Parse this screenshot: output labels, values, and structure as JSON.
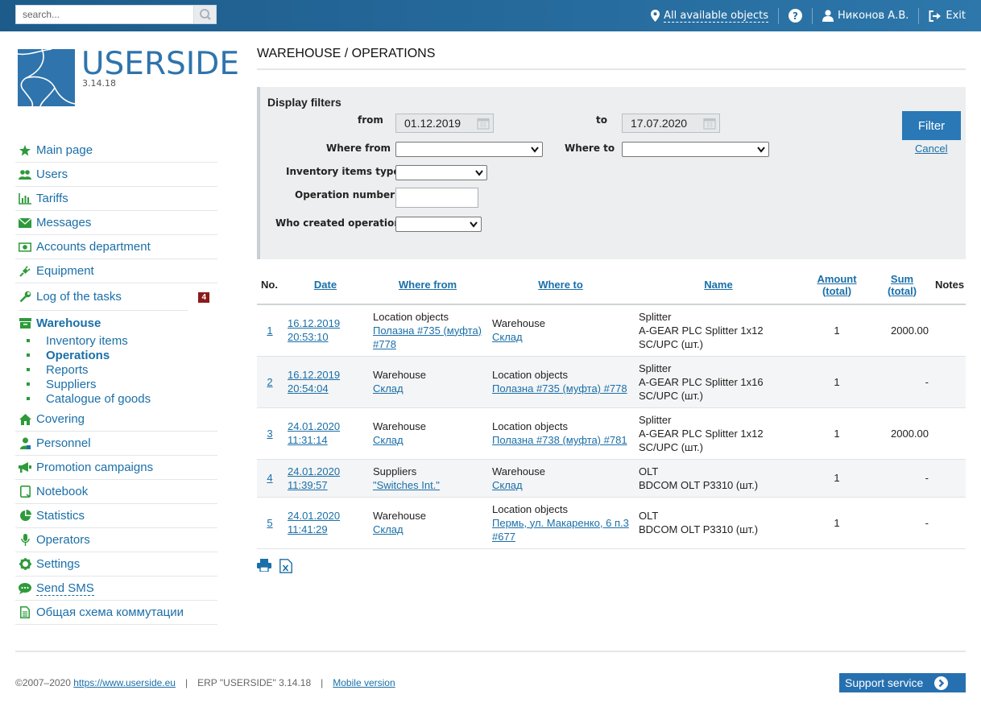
{
  "topbar": {
    "search_placeholder": "search...",
    "objects_link": "All available objects",
    "user_name": "Никонов А.В.",
    "exit_label": "Exit"
  },
  "logo": {
    "name": "USERSIDE",
    "version": "3.14.18"
  },
  "sidebar": {
    "items": [
      {
        "label": "Main page",
        "icon": "star-icon"
      },
      {
        "label": "Users",
        "icon": "users-icon"
      },
      {
        "label": "Tariffs",
        "icon": "bar-chart-icon"
      },
      {
        "label": "Messages",
        "icon": "envelope-icon"
      },
      {
        "label": "Accounts department",
        "icon": "money-icon"
      },
      {
        "label": "Equipment",
        "icon": "plug-icon"
      },
      {
        "label": "Log of the tasks",
        "icon": "wrench-icon",
        "badge": "4"
      },
      {
        "label": "Warehouse",
        "icon": "archive-icon"
      }
    ],
    "warehouse_sub": [
      "Inventory items",
      "Operations",
      "Reports",
      "Suppliers",
      "Catalogue of goods"
    ],
    "items2": [
      {
        "label": "Covering",
        "icon": "home-icon"
      },
      {
        "label": "Personnel",
        "icon": "person-icon"
      },
      {
        "label": "Promotion campaigns",
        "icon": "megaphone-icon"
      },
      {
        "label": "Notebook",
        "icon": "notebook-icon"
      },
      {
        "label": "Statistics",
        "icon": "pie-chart-icon"
      },
      {
        "label": "Operators",
        "icon": "microphone-icon"
      },
      {
        "label": "Settings",
        "icon": "gear-icon"
      },
      {
        "label": "Send SMS",
        "icon": "chat-icon"
      },
      {
        "label": "Общая схема коммутации",
        "icon": "document-icon"
      }
    ]
  },
  "page": {
    "title": "WAREHOUSE / OPERATIONS"
  },
  "filters": {
    "title": "Display filters",
    "from_label": "from",
    "from_value": "01.12.2019",
    "to_label": "to",
    "to_value": "17.07.2020",
    "where_from_label": "Where from",
    "where_to_label": "Where to",
    "inventory_type_label": "Inventory items type",
    "operation_number_label": "Operation number",
    "who_created_label": "Who created operation",
    "filter_button": "Filter",
    "cancel_link": "Cancel"
  },
  "table": {
    "headers": {
      "no": "No.",
      "date": "Date",
      "where_from": "Where from",
      "where_to": "Where to",
      "name": "Name",
      "amount_1": "Amount",
      "amount_2": "(total)",
      "sum_1": "Sum",
      "sum_2": "(total)",
      "notes": "Notes"
    },
    "rows": [
      {
        "no": "1",
        "date": "16.12.2019",
        "time": "20:53:10",
        "from_type": "Location objects",
        "from_link": "Полазна #735 (муфта) #778",
        "to_type": "Warehouse",
        "to_link": "Склад",
        "name_type": "Splitter",
        "name_item": "A-GEAR PLC Splitter 1x12 SC/UPC (шт.)",
        "amount": "1",
        "sum": "2000.00"
      },
      {
        "no": "2",
        "date": "16.12.2019",
        "time": "20:54:04",
        "from_type": "Warehouse",
        "from_link": "Склад",
        "to_type": "Location objects",
        "to_link": "Полазна #735 (муфта) #778",
        "name_type": "Splitter",
        "name_item": "A-GEAR PLC Splitter 1x16 SC/UPC (шт.)",
        "amount": "1",
        "sum": "-"
      },
      {
        "no": "3",
        "date": "24.01.2020",
        "time": "11:31:14",
        "from_type": "Warehouse",
        "from_link": "Склад",
        "to_type": "Location objects",
        "to_link": "Полазна #738 (муфта) #781",
        "name_type": "Splitter",
        "name_item": "A-GEAR PLC Splitter 1x12 SC/UPC (шт.)",
        "amount": "1",
        "sum": "2000.00"
      },
      {
        "no": "4",
        "date": "24.01.2020",
        "time": "11:39:57",
        "from_type": "Suppliers",
        "from_link": "\"Switches Int.\"",
        "to_type": "Warehouse",
        "to_link": "Склад",
        "name_type": "OLT",
        "name_item": "BDCOM OLT P3310 (шт.)",
        "amount": "1",
        "sum": "-"
      },
      {
        "no": "5",
        "date": "24.01.2020",
        "time": "11:41:29",
        "from_type": "Warehouse",
        "from_link": "Склад",
        "to_type": "Location objects",
        "to_link": "Пермь, ул. Макаренко, 6 п.3 #677",
        "name_type": "OLT",
        "name_item": "BDCOM OLT P3310 (шт.)",
        "amount": "1",
        "sum": "-"
      }
    ]
  },
  "footer": {
    "copyright": "©2007–2020",
    "site_link": "https://www.userside.eu",
    "erp": "ERP \"USERSIDE\" 3.14.18",
    "mobile": "Mobile version",
    "support": "Support service"
  },
  "colors": {
    "topbar": "#2d77ab",
    "accent": "#1a6fa8",
    "icon_green": "#2e9a3a",
    "badge": "#8b1a1a"
  }
}
